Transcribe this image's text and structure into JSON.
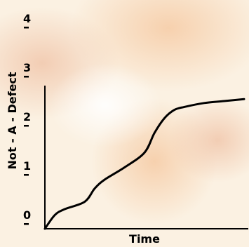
{
  "chart_data": {
    "type": "line",
    "title": "",
    "xlabel": "Time",
    "ylabel": "Not - A - Defect",
    "ylim": [
      0,
      4
    ],
    "y_ticks": [
      "0",
      "1",
      "2",
      "3",
      "4"
    ],
    "y_minor_tick_marks": [
      0.1,
      1.1,
      2.1,
      3.1,
      4.1
    ],
    "x_ticks": [],
    "grid": false,
    "legend": "none",
    "series": [
      {
        "color": "#000000",
        "x": [
          0,
          0.05,
          0.1,
          0.2,
          0.25,
          0.3,
          0.4,
          0.5,
          0.55,
          0.6,
          0.65,
          0.7,
          0.8,
          0.9,
          1.0
        ],
        "y": [
          0,
          0.28,
          0.4,
          0.55,
          0.82,
          1.0,
          1.25,
          1.55,
          1.95,
          2.25,
          2.42,
          2.48,
          2.56,
          2.6,
          2.64
        ]
      }
    ]
  }
}
